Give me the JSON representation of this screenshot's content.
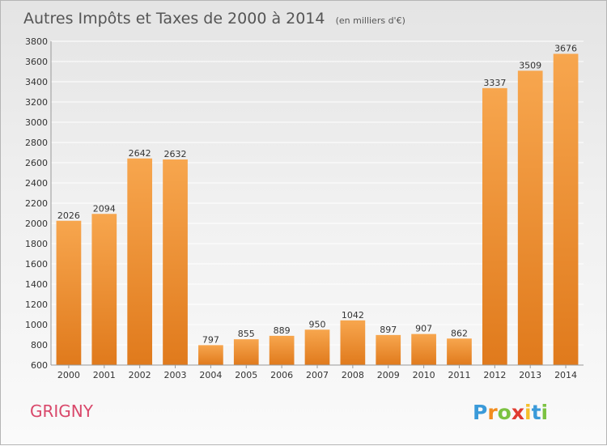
{
  "title": "Autres Impôts et Taxes de 2000 à 2014",
  "subtitle": "(en milliers d'€)",
  "commune": "GRIGNY",
  "logo": {
    "text": "Proxiti",
    "letter_colors": [
      "#3a9ad9",
      "#f28c1e",
      "#7cc242",
      "#e03c31",
      "#f5c02a",
      "#3a9ad9",
      "#7cc242"
    ]
  },
  "colors": {
    "bar_light": "#f7a64e",
    "bar_dark": "#e07a1c",
    "grid": "#ffffff",
    "commune": "#d9476a"
  },
  "chart_data": {
    "type": "bar",
    "title": "Autres Impôts et Taxes de 2000 à 2014",
    "subtitle": "(en milliers d'€)",
    "xlabel": "",
    "ylabel": "",
    "ylim": [
      600,
      3800
    ],
    "yticks": [
      600,
      800,
      1000,
      1200,
      1400,
      1600,
      1800,
      2000,
      2200,
      2400,
      2600,
      2800,
      3000,
      3200,
      3400,
      3600,
      3800
    ],
    "grid": true,
    "categories": [
      "2000",
      "2001",
      "2002",
      "2003",
      "2004",
      "2005",
      "2006",
      "2007",
      "2008",
      "2009",
      "2010",
      "2011",
      "2012",
      "2013",
      "2014"
    ],
    "values": [
      2026,
      2094,
      2642,
      2632,
      797,
      855,
      889,
      950,
      1042,
      897,
      907,
      862,
      3337,
      3509,
      3676
    ]
  }
}
